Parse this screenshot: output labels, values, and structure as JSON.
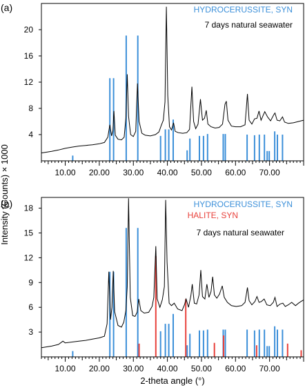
{
  "y_axis_label": "Intensity (Counts) × 1000",
  "x_axis_label": "2-theta angle (°)",
  "colors": {
    "hydrocerussite": "#3b8fd9",
    "halite": "#e8403a",
    "pattern": "#000000",
    "axis": "#000000"
  },
  "chart_data": [
    {
      "type": "line",
      "panel_label": "(a)",
      "condition": "7 days natural seawater",
      "xlim": [
        3,
        80
      ],
      "ylim": [
        0,
        24
      ],
      "x_ticks": [
        10,
        20,
        30,
        40,
        50,
        60,
        70
      ],
      "x_tick_labels": [
        "10.00",
        "20.00",
        "30.00",
        "40.00",
        "50.00",
        "60.00",
        "70.00"
      ],
      "y_ticks": [
        4,
        8,
        12,
        16,
        20
      ],
      "y_tick_labels": [
        "4",
        "8",
        "12",
        "16",
        "20"
      ],
      "reference_patterns": [
        {
          "name": "HYDROCERUSSITE, SYN",
          "color": "#3b8fd9",
          "sticks": [
            [
              12.2,
              0.8
            ],
            [
              23.1,
              12.6
            ],
            [
              24.2,
              12.6
            ],
            [
              27.9,
              19.1
            ],
            [
              31.3,
              19.1
            ],
            [
              38.0,
              3.8
            ],
            [
              39.4,
              4.8
            ],
            [
              40.4,
              4.8
            ],
            [
              41.7,
              6.3
            ],
            [
              45.8,
              1.6
            ],
            [
              46.6,
              3.4
            ],
            [
              49.4,
              3.8
            ],
            [
              50.6,
              3.8
            ],
            [
              51.8,
              4.1
            ],
            [
              56.4,
              4.1
            ],
            [
              57.0,
              4.1
            ],
            [
              63.4,
              4.0
            ],
            [
              65.6,
              3.9
            ],
            [
              67.0,
              4.0
            ],
            [
              68.5,
              4.0
            ],
            [
              69.3,
              1.5
            ],
            [
              69.9,
              1.5
            ],
            [
              71.5,
              4.5
            ],
            [
              72.3,
              4.0
            ],
            [
              73.8,
              4.0
            ]
          ]
        }
      ],
      "pattern": {
        "name": "7 days natural seawater",
        "points": [
          [
            3,
            1.2
          ],
          [
            6,
            1.45
          ],
          [
            8,
            1.65
          ],
          [
            10,
            1.9
          ],
          [
            12,
            2.1
          ],
          [
            14,
            2.25
          ],
          [
            16,
            2.35
          ],
          [
            18,
            2.45
          ],
          [
            20,
            2.6
          ],
          [
            21.5,
            2.8
          ],
          [
            22.5,
            3.6
          ],
          [
            23.1,
            5.5
          ],
          [
            23.6,
            3.8
          ],
          [
            24.0,
            4.6
          ],
          [
            24.3,
            7.6
          ],
          [
            24.7,
            3.9
          ],
          [
            25.5,
            3.3
          ],
          [
            26.5,
            3.2
          ],
          [
            27.3,
            3.6
          ],
          [
            27.8,
            6.5
          ],
          [
            28.2,
            13.2
          ],
          [
            28.6,
            6.8
          ],
          [
            29.2,
            4.0
          ],
          [
            30.0,
            3.7
          ],
          [
            30.7,
            4.5
          ],
          [
            31.2,
            11.8
          ],
          [
            31.7,
            6.0
          ],
          [
            32.5,
            4.2
          ],
          [
            33.5,
            3.9
          ],
          [
            35.0,
            3.8
          ],
          [
            36.5,
            4.0
          ],
          [
            37.5,
            4.4
          ],
          [
            38.2,
            5.4
          ],
          [
            38.8,
            6.2
          ],
          [
            39.3,
            9.0
          ],
          [
            39.7,
            23.5
          ],
          [
            40.1,
            10.0
          ],
          [
            40.6,
            5.2
          ],
          [
            41.2,
            4.7
          ],
          [
            41.8,
            5.8
          ],
          [
            42.3,
            4.5
          ],
          [
            43.2,
            4.3
          ],
          [
            44.5,
            4.2
          ],
          [
            45.7,
            4.3
          ],
          [
            46.5,
            4.8
          ],
          [
            47.2,
            11.3
          ],
          [
            47.7,
            6.0
          ],
          [
            48.3,
            4.9
          ],
          [
            49.0,
            5.6
          ],
          [
            49.7,
            9.4
          ],
          [
            50.3,
            6.2
          ],
          [
            50.9,
            6.5
          ],
          [
            51.4,
            7.7
          ],
          [
            51.9,
            5.6
          ],
          [
            52.8,
            5.2
          ],
          [
            54.0,
            5.0
          ],
          [
            55.2,
            5.1
          ],
          [
            56.2,
            5.6
          ],
          [
            56.9,
            8.6
          ],
          [
            57.3,
            9.1
          ],
          [
            57.8,
            6.2
          ],
          [
            58.8,
            5.3
          ],
          [
            60.0,
            5.2
          ],
          [
            61.5,
            5.2
          ],
          [
            62.8,
            5.5
          ],
          [
            63.5,
            10.2
          ],
          [
            64.0,
            6.2
          ],
          [
            64.8,
            5.6
          ],
          [
            65.6,
            6.4
          ],
          [
            66.3,
            6.5
          ],
          [
            66.9,
            7.6
          ],
          [
            67.5,
            6.2
          ],
          [
            68.0,
            6.8
          ],
          [
            68.6,
            7.5
          ],
          [
            69.4,
            6.7
          ],
          [
            70.3,
            6.1
          ],
          [
            71.2,
            7.0
          ],
          [
            71.6,
            7.3
          ],
          [
            72.2,
            6.2
          ],
          [
            73.0,
            6.1
          ],
          [
            73.8,
            6.7
          ],
          [
            74.4,
            5.9
          ],
          [
            75.5,
            5.7
          ],
          [
            77.0,
            5.8
          ],
          [
            78.5,
            6.0
          ],
          [
            80,
            6.2
          ]
        ]
      }
    },
    {
      "type": "line",
      "panel_label": "(b)",
      "condition": "7 days natural seawater",
      "xlim": [
        3,
        80
      ],
      "ylim": [
        0,
        19.3
      ],
      "x_ticks": [
        10,
        20,
        30,
        40,
        50,
        60,
        70
      ],
      "x_tick_labels": [
        "10.00",
        "20.00",
        "30.00",
        "40.00",
        "50.00",
        "60.00",
        "70.00"
      ],
      "y_ticks": [
        3,
        6,
        9,
        12,
        15,
        18
      ],
      "y_tick_labels": [
        "3",
        "6",
        "9",
        "12",
        "15",
        "18"
      ],
      "reference_patterns": [
        {
          "name": "HYDROCERUSSITE, SYN",
          "color": "#3b8fd9",
          "sticks": [
            [
              12.2,
              0.7
            ],
            [
              23.1,
              10.3
            ],
            [
              24.2,
              10.3
            ],
            [
              27.9,
              15.6
            ],
            [
              31.3,
              15.6
            ],
            [
              38.0,
              3.1
            ],
            [
              39.4,
              4.0
            ],
            [
              40.4,
              4.0
            ],
            [
              41.7,
              5.2
            ],
            [
              45.8,
              1.4
            ],
            [
              46.6,
              2.8
            ],
            [
              49.4,
              3.2
            ],
            [
              50.6,
              3.2
            ],
            [
              51.8,
              3.3
            ],
            [
              56.4,
              3.3
            ],
            [
              57.0,
              3.3
            ],
            [
              63.4,
              3.3
            ],
            [
              65.6,
              3.2
            ],
            [
              67.0,
              3.3
            ],
            [
              68.5,
              3.3
            ],
            [
              69.3,
              1.3
            ],
            [
              69.9,
              1.3
            ],
            [
              71.5,
              3.7
            ],
            [
              72.3,
              3.3
            ],
            [
              73.8,
              3.3
            ]
          ]
        },
        {
          "name": "HALITE, SYN",
          "color": "#e8403a",
          "sticks": [
            [
              31.7,
              1.6
            ],
            [
              36.6,
              12.2
            ],
            [
              45.4,
              7.0
            ],
            [
              53.8,
              1.7
            ],
            [
              56.5,
              2.6
            ],
            [
              66.2,
              1.4
            ],
            [
              75.3,
              1.6
            ],
            [
              79.3,
              0.8
            ]
          ]
        }
      ],
      "pattern": {
        "name": "7 days natural seawater",
        "points": [
          [
            3,
            1.1
          ],
          [
            6,
            1.3
          ],
          [
            8,
            1.5
          ],
          [
            9.3,
            1.9
          ],
          [
            10,
            1.7
          ],
          [
            12,
            1.8
          ],
          [
            14,
            1.9
          ],
          [
            16,
            2.0
          ],
          [
            18,
            2.15
          ],
          [
            20,
            2.3
          ],
          [
            21.5,
            2.5
          ],
          [
            22.3,
            4.0
          ],
          [
            22.8,
            10.3
          ],
          [
            23.3,
            4.5
          ],
          [
            23.7,
            6.0
          ],
          [
            24.1,
            10.4
          ],
          [
            24.5,
            5.5
          ],
          [
            25.5,
            3.8
          ],
          [
            26.5,
            3.6
          ],
          [
            27.2,
            4.2
          ],
          [
            27.8,
            5.6
          ],
          [
            28.2,
            8.5
          ],
          [
            28.6,
            19.2
          ],
          [
            29.1,
            7.2
          ],
          [
            29.8,
            5.0
          ],
          [
            30.5,
            4.9
          ],
          [
            31.1,
            5.4
          ],
          [
            31.6,
            7.0
          ],
          [
            32.2,
            5.6
          ],
          [
            33.2,
            5.3
          ],
          [
            34.5,
            5.4
          ],
          [
            35.5,
            6.1
          ],
          [
            36.0,
            7.2
          ],
          [
            36.6,
            13.4
          ],
          [
            37.0,
            7.0
          ],
          [
            37.8,
            6.0
          ],
          [
            38.5,
            6.9
          ],
          [
            39.1,
            8.5
          ],
          [
            39.5,
            19.0
          ],
          [
            39.9,
            11.5
          ],
          [
            40.5,
            6.5
          ],
          [
            41.2,
            6.2
          ],
          [
            42.0,
            6.5
          ],
          [
            43.0,
            5.8
          ],
          [
            44.3,
            5.6
          ],
          [
            45.0,
            6.3
          ],
          [
            45.5,
            7.0
          ],
          [
            46.2,
            6.0
          ],
          [
            46.9,
            7.4
          ],
          [
            47.3,
            8.8
          ],
          [
            47.9,
            6.5
          ],
          [
            48.6,
            6.4
          ],
          [
            49.3,
            7.5
          ],
          [
            49.8,
            10.5
          ],
          [
            50.3,
            7.3
          ],
          [
            51.0,
            7.0
          ],
          [
            51.6,
            8.8
          ],
          [
            52.2,
            7.2
          ],
          [
            52.8,
            7.9
          ],
          [
            53.3,
            9.7
          ],
          [
            53.8,
            7.5
          ],
          [
            54.5,
            7.1
          ],
          [
            55.3,
            7.6
          ],
          [
            56.1,
            8.6
          ],
          [
            56.7,
            7.2
          ],
          [
            57.6,
            6.6
          ],
          [
            58.8,
            6.2
          ],
          [
            60.2,
            6.1
          ],
          [
            61.8,
            6.2
          ],
          [
            62.8,
            6.6
          ],
          [
            63.5,
            8.4
          ],
          [
            64.0,
            6.8
          ],
          [
            64.8,
            6.3
          ],
          [
            65.7,
            6.7
          ],
          [
            66.3,
            7.3
          ],
          [
            66.9,
            6.6
          ],
          [
            67.6,
            6.7
          ],
          [
            68.4,
            7.0
          ],
          [
            69.2,
            6.3
          ],
          [
            70.2,
            6.2
          ],
          [
            71.1,
            6.6
          ],
          [
            71.6,
            7.2
          ],
          [
            72.2,
            6.1
          ],
          [
            73.1,
            6.4
          ],
          [
            73.9,
            6.5
          ],
          [
            74.6,
            6.1
          ],
          [
            75.5,
            6.3
          ],
          [
            76.5,
            6.6
          ],
          [
            77.6,
            6.2
          ],
          [
            78.5,
            6.5
          ],
          [
            79.2,
            6.7
          ],
          [
            80,
            6.9
          ]
        ]
      }
    }
  ]
}
